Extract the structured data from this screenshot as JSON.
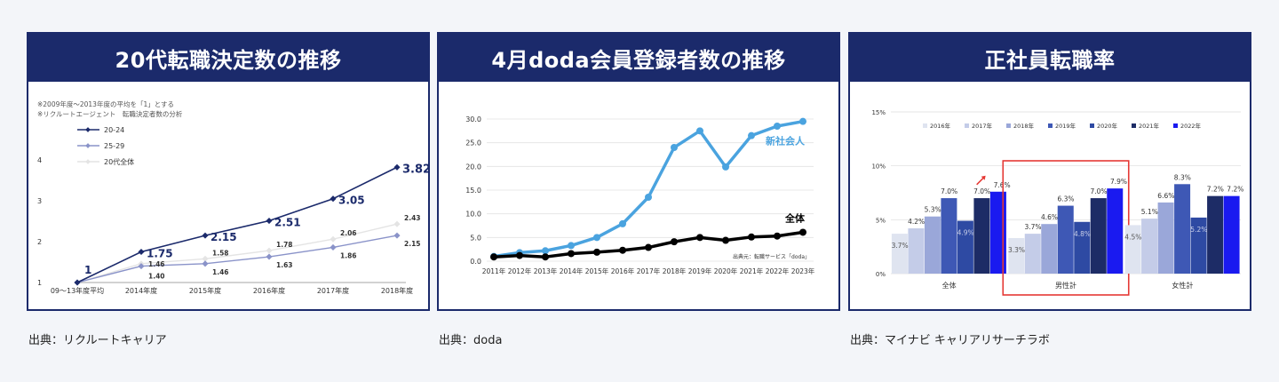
{
  "panels": [
    {
      "title": "20代転職決定数の推移",
      "source": "出典：リクルートキャリア"
    },
    {
      "title": "4月doda会員登録者数の推移",
      "source": "出典：doda"
    },
    {
      "title": "正社員転職率",
      "source": "出典：マイナビ キャリアリサーチラボ"
    }
  ],
  "chart_data": [
    {
      "type": "line",
      "notes": [
        "※2009年度～2013年度の平均を「1」とする",
        "※リクルートエージェント　転職決定者数の分析"
      ],
      "categories": [
        "09～13年度平均",
        "2014年度",
        "2015年度",
        "2016年度",
        "2017年度",
        "2018年度"
      ],
      "y_ticks": [
        "1",
        "2",
        "3",
        "4"
      ],
      "ylim": [
        1,
        4
      ],
      "series": [
        {
          "name": "20-24",
          "color": "#1b2a6b",
          "values": [
            1,
            1.75,
            2.15,
            2.51,
            3.05,
            3.82
          ],
          "labels": [
            "1",
            "1.75",
            "2.15",
            "2.51",
            "3.05",
            "3.82"
          ]
        },
        {
          "name": "25-29",
          "color": "#8a93c9",
          "values": [
            1,
            1.4,
            1.46,
            1.63,
            1.86,
            2.15
          ],
          "labels": [
            "",
            "1.40",
            "1.46",
            "1.63",
            "1.86",
            "2.15"
          ]
        },
        {
          "name": "20代全体",
          "color": "#e4e4e4",
          "values": [
            1,
            1.46,
            1.58,
            1.78,
            2.06,
            2.43
          ],
          "labels": [
            "",
            "1.46",
            "1.58",
            "1.78",
            "2.06",
            "2.43"
          ]
        }
      ]
    },
    {
      "type": "line",
      "categories": [
        "2011年",
        "2012年",
        "2013年",
        "2014年",
        "2015年",
        "2016年",
        "2017年",
        "2018年",
        "2019年",
        "2020年",
        "2021年",
        "2022年",
        "2023年"
      ],
      "y_ticks": [
        "0.0",
        "5.0",
        "10.0",
        "15.0",
        "20.0",
        "25.0",
        "30.0"
      ],
      "ylim": [
        0,
        30
      ],
      "source_note": "出典元：転職サービス「doda」",
      "series": [
        {
          "name": "新社会人",
          "color": "#4aa3df",
          "values": [
            1.0,
            1.8,
            2.2,
            3.3,
            5.0,
            7.9,
            13.5,
            24.0,
            27.5,
            19.9,
            26.5,
            28.5,
            29.5
          ]
        },
        {
          "name": "全体",
          "color": "#000000",
          "values": [
            0.9,
            1.2,
            0.9,
            1.6,
            1.9,
            2.3,
            2.9,
            4.1,
            5.0,
            4.4,
            5.1,
            5.3,
            6.1
          ]
        }
      ]
    },
    {
      "type": "bar",
      "categories": [
        "全体",
        "男性計",
        "女性計"
      ],
      "y_ticks": [
        "0%",
        "5%",
        "10%",
        "15%"
      ],
      "ylim": [
        0,
        15
      ],
      "highlight": "男性計",
      "series": [
        {
          "name": "2016年",
          "color": "#dfe4f0",
          "values": [
            3.7,
            3.3,
            4.5
          ]
        },
        {
          "name": "2017年",
          "color": "#c4cce8",
          "values": [
            4.2,
            3.7,
            5.1
          ]
        },
        {
          "name": "2018年",
          "color": "#9aa7d9",
          "values": [
            5.3,
            4.6,
            6.6
          ]
        },
        {
          "name": "2019年",
          "color": "#3e58b5",
          "values": [
            7.0,
            6.3,
            8.3
          ]
        },
        {
          "name": "2020年",
          "color": "#2e4aa3",
          "values": [
            4.9,
            4.8,
            5.2
          ]
        },
        {
          "name": "2021年",
          "color": "#1d2c66",
          "values": [
            7.0,
            7.0,
            7.2
          ]
        },
        {
          "name": "2022年",
          "color": "#1a1af0",
          "values": [
            7.6,
            7.9,
            7.2
          ]
        }
      ]
    }
  ]
}
